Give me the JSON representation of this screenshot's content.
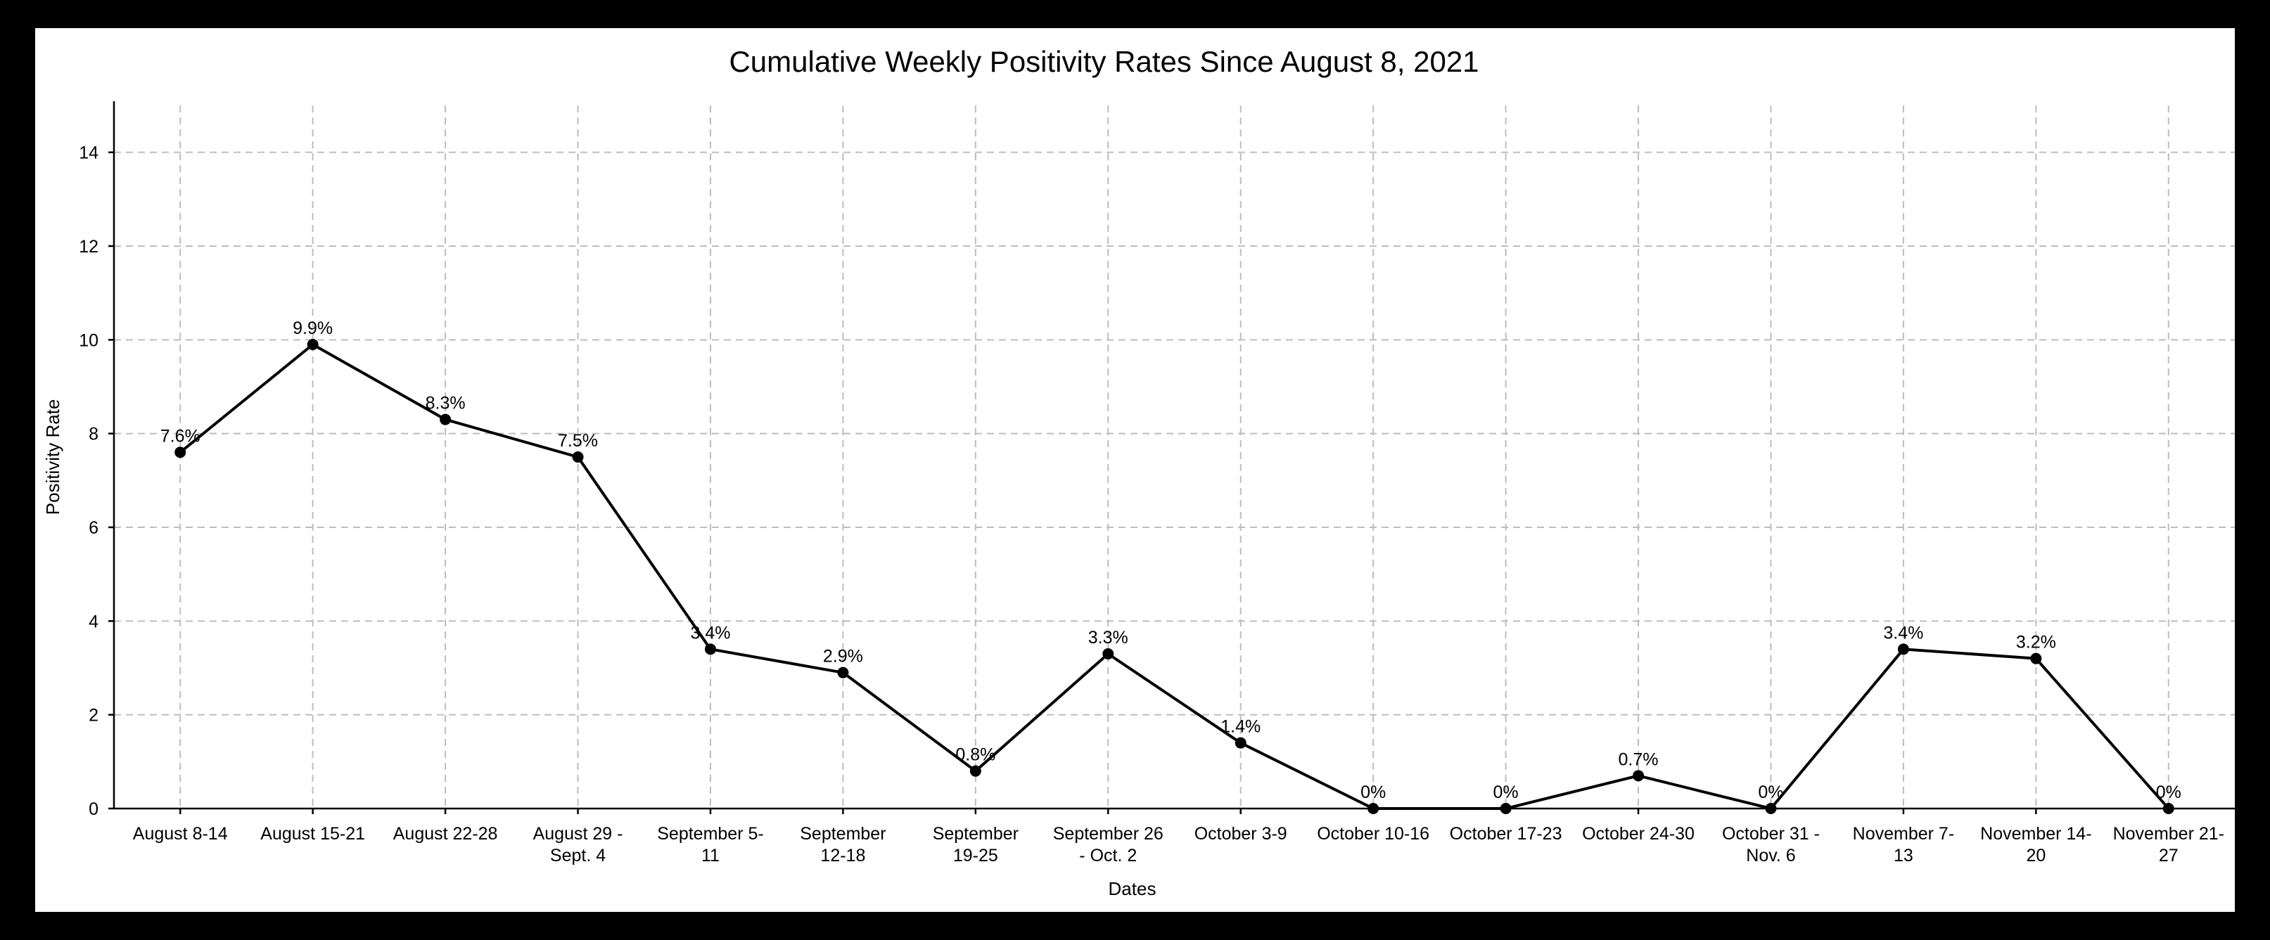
{
  "chart_data": {
    "type": "line",
    "title": "Cumulative Weekly Positivity Rates Since August 8, 2021",
    "xlabel": "Dates",
    "ylabel": "Positivity Rate",
    "ylim": [
      0,
      15
    ],
    "yticks": [
      0,
      2,
      4,
      6,
      8,
      10,
      12,
      14
    ],
    "grid": true,
    "categories": [
      [
        "August 8-14"
      ],
      [
        "August 15-21"
      ],
      [
        "August 22-28"
      ],
      [
        "August 29 -",
        "Sept. 4"
      ],
      [
        "September 5-",
        "11"
      ],
      [
        "September",
        "12-18"
      ],
      [
        "September",
        "19-25"
      ],
      [
        "September 26",
        "- Oct. 2"
      ],
      [
        "October 3-9"
      ],
      [
        "October 10-16"
      ],
      [
        "October 17-23"
      ],
      [
        "October 24-30"
      ],
      [
        "October 31 -",
        "Nov. 6"
      ],
      [
        "November 7-",
        "13"
      ],
      [
        "November 14-",
        "20"
      ],
      [
        "November 21-",
        "27"
      ]
    ],
    "series": [
      {
        "values": [
          7.6,
          9.9,
          8.3,
          7.5,
          3.4,
          2.9,
          0.8,
          3.3,
          1.4,
          0,
          0,
          0.7,
          0,
          3.4,
          3.2,
          0
        ],
        "labels": [
          "7.6%",
          "9.9%",
          "8.3%",
          "7.5%",
          "3.4%",
          "2.9%",
          "0.8%",
          "3.3%",
          "1.4%",
          "0%",
          "0%",
          "0.7%",
          "0%",
          "3.4%",
          "3.2%",
          "0%"
        ],
        "color": "#000000"
      }
    ]
  }
}
